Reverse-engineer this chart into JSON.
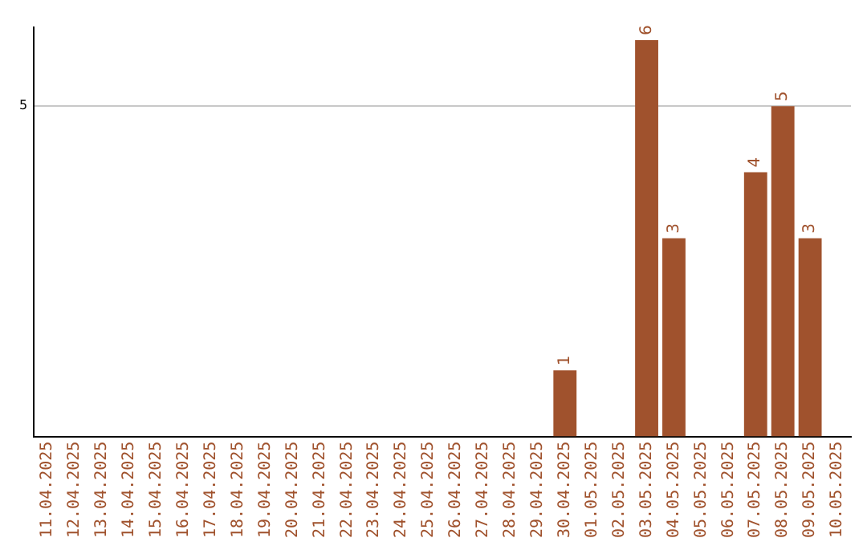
{
  "chart_data": {
    "type": "bar",
    "categories": [
      "11.04.2025",
      "12.04.2025",
      "13.04.2025",
      "14.04.2025",
      "15.04.2025",
      "16.04.2025",
      "17.04.2025",
      "18.04.2025",
      "19.04.2025",
      "20.04.2025",
      "21.04.2025",
      "22.04.2025",
      "23.04.2025",
      "24.04.2025",
      "25.04.2025",
      "26.04.2025",
      "27.04.2025",
      "28.04.2025",
      "29.04.2025",
      "30.04.2025",
      "01.05.2025",
      "02.05.2025",
      "03.05.2025",
      "04.05.2025",
      "05.05.2025",
      "06.05.2025",
      "07.05.2025",
      "08.05.2025",
      "09.05.2025",
      "10.05.2025"
    ],
    "values": [
      null,
      null,
      null,
      null,
      null,
      null,
      null,
      null,
      null,
      null,
      null,
      null,
      null,
      null,
      null,
      null,
      null,
      null,
      null,
      1,
      null,
      null,
      6,
      3,
      null,
      null,
      4,
      5,
      3,
      null
    ],
    "data_labels": true,
    "color": "#a0522d",
    "ylim": [
      0,
      6.2
    ],
    "yticks": [
      5
    ],
    "grid": "y",
    "legend": false
  }
}
